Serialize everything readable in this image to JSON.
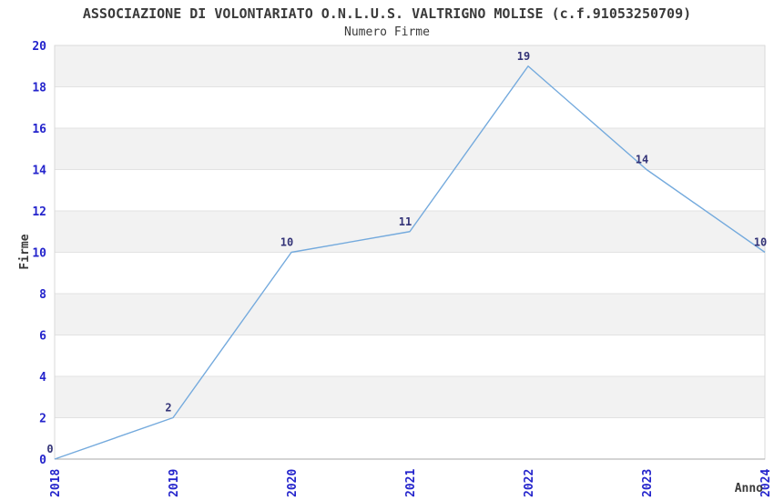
{
  "page": {
    "title": "ASSOCIAZIONE DI VOLONTARIATO O.N.L.U.S. VALTRIGNO MOLISE (c.f.91053250709)",
    "subtitle": "Numero Firme"
  },
  "chart_data": {
    "type": "line",
    "title": "ASSOCIAZIONE DI VOLONTARIATO O.N.L.U.S. VALTRIGNO MOLISE (c.f.91053250709)",
    "subtitle": "Numero Firme",
    "xlabel": "Anno",
    "ylabel": "Firme",
    "categories": [
      "2018",
      "2019",
      "2020",
      "2021",
      "2022",
      "2023",
      "2024"
    ],
    "values": [
      0,
      2,
      10,
      11,
      19,
      14,
      10
    ],
    "point_labels": [
      "0",
      "2",
      "10",
      "11",
      "19",
      "14",
      "10"
    ],
    "ylim": [
      0,
      20
    ],
    "ytick_step": 2,
    "yticks": [
      0,
      2,
      4,
      6,
      8,
      10,
      12,
      14,
      16,
      18,
      20
    ],
    "grid": true,
    "legend": "none",
    "band_pattern": "alternating gray/white horizontal stripes, gray topmost",
    "colors": {
      "line": "#74aadd",
      "tick_labels": "#2424cc",
      "point_labels": "#333377",
      "text": "#3a3a3a",
      "band": "#f2f2f2",
      "gridline": "#e2e2e2",
      "border": "#d9d9d9",
      "axis": "#a9a9a9",
      "background": "#ffffff"
    }
  }
}
